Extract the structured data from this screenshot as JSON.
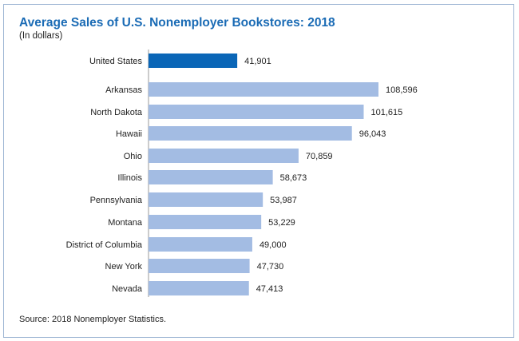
{
  "chart_data": {
    "type": "bar",
    "orientation": "horizontal",
    "title": "Average Sales of U.S. Nonemployer Bookstores: 2018",
    "subtitle": "(In dollars)",
    "source": "Source: 2018 Nonemployer Statistics.",
    "categories": [
      "United States",
      "Arkansas",
      "North Dakota",
      "Hawaii",
      "Ohio",
      "Illinois",
      "Pennsylvania",
      "Montana",
      "District of Columbia",
      "New York",
      "Nevada"
    ],
    "values": [
      41901,
      108596,
      101615,
      96043,
      70859,
      58673,
      53987,
      53229,
      49000,
      47730,
      47413
    ],
    "value_labels": [
      "41,901",
      "108,596",
      "101,615",
      "96,043",
      "70,859",
      "58,673",
      "53,987",
      "53,229",
      "49,000",
      "47,730",
      "47,413"
    ],
    "highlight_index": 0,
    "colors": {
      "highlight": "#0a66b7",
      "default": "#a3bce3",
      "title": "#1a6bb5"
    },
    "xlim": [
      0,
      110000
    ],
    "grid": false
  }
}
